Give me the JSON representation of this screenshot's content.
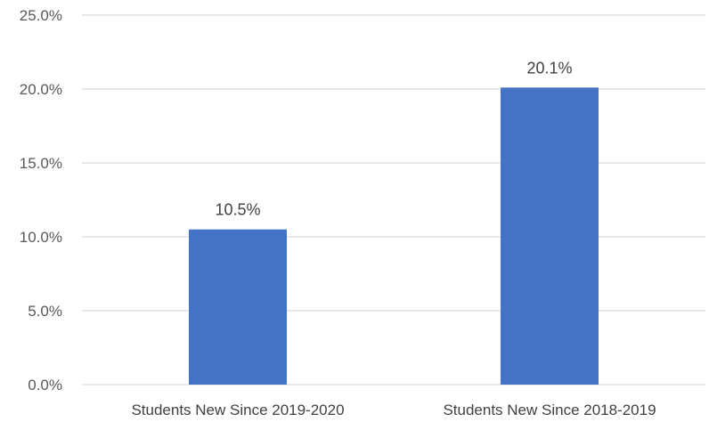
{
  "chart_data": {
    "type": "bar",
    "title": "",
    "xlabel": "",
    "ylabel": "",
    "categories": [
      "Students New Since 2019-2020",
      "Students New Since 2018-2019"
    ],
    "values": [
      10.5,
      20.1
    ],
    "data_labels": [
      "10.5%",
      "20.1%"
    ],
    "ylim": [
      0,
      25
    ],
    "y_ticks": [
      0,
      5,
      10,
      15,
      20,
      25
    ],
    "y_tick_labels": [
      "0.0%",
      "5.0%",
      "10.0%",
      "15.0%",
      "20.0%",
      "25.0%"
    ],
    "grid": true,
    "legend": "none",
    "colors": {
      "bar": "#4472C4",
      "grid": "#D9D9D9",
      "text": "#595959"
    }
  }
}
